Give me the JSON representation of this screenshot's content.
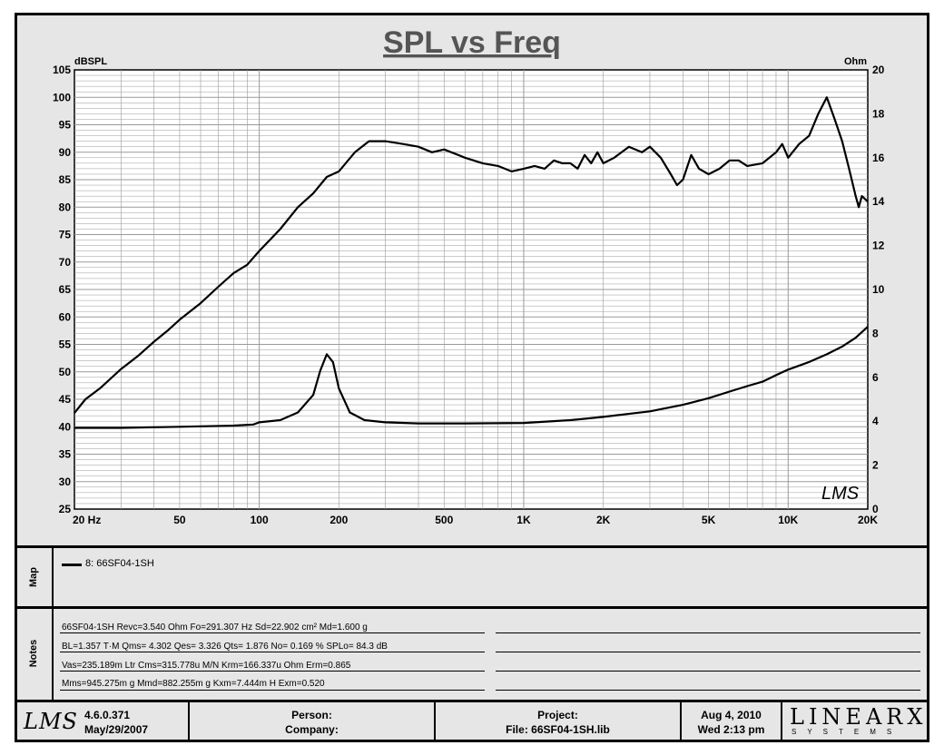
{
  "chart_data": {
    "type": "line",
    "title": "SPL vs Freq",
    "left_axis": {
      "label": "dBSPL",
      "range": [
        25,
        105
      ],
      "ticks": [
        "105",
        "100",
        "95",
        "90",
        "85",
        "80",
        "75",
        "70",
        "65",
        "60",
        "55",
        "50",
        "45",
        "40",
        "35",
        "30",
        "25"
      ]
    },
    "right_axis": {
      "label": "Ohm",
      "range": [
        0,
        20
      ],
      "ticks": [
        "20",
        "18",
        "16",
        "14",
        "12",
        "10",
        "8",
        "6",
        "4",
        "2",
        "0"
      ]
    },
    "x_axis": {
      "scale": "log",
      "range": [
        20,
        20000
      ],
      "tick_labels": [
        {
          "v": 20,
          "t": "20  Hz"
        },
        {
          "v": 50,
          "t": "50"
        },
        {
          "v": 100,
          "t": "100"
        },
        {
          "v": 200,
          "t": "200"
        },
        {
          "v": 500,
          "t": "500"
        },
        {
          "v": 1000,
          "t": "1K"
        },
        {
          "v": 2000,
          "t": "2K"
        },
        {
          "v": 5000,
          "t": "5K"
        },
        {
          "v": 10000,
          "t": "10K"
        },
        {
          "v": 20000,
          "t": "20K"
        }
      ]
    },
    "grid": true,
    "series": [
      {
        "axis": "left",
        "unit": "dBSPL",
        "points": [
          [
            20,
            42.5
          ],
          [
            22,
            45
          ],
          [
            25,
            47
          ],
          [
            30,
            50.5
          ],
          [
            35,
            53
          ],
          [
            40,
            55.5
          ],
          [
            45,
            57.5
          ],
          [
            50,
            59.5
          ],
          [
            60,
            62.5
          ],
          [
            70,
            65.5
          ],
          [
            80,
            68
          ],
          [
            90,
            69.5
          ],
          [
            100,
            72
          ],
          [
            120,
            76
          ],
          [
            140,
            80
          ],
          [
            160,
            82.5
          ],
          [
            180,
            85.5
          ],
          [
            200,
            86.5
          ],
          [
            230,
            90
          ],
          [
            260,
            92
          ],
          [
            300,
            92
          ],
          [
            350,
            91.5
          ],
          [
            400,
            91
          ],
          [
            450,
            90
          ],
          [
            500,
            90.5
          ],
          [
            600,
            89
          ],
          [
            700,
            88
          ],
          [
            800,
            87.5
          ],
          [
            900,
            86.5
          ],
          [
            1000,
            87
          ],
          [
            1100,
            87.5
          ],
          [
            1200,
            87
          ],
          [
            1300,
            88.5
          ],
          [
            1400,
            88
          ],
          [
            1500,
            88
          ],
          [
            1600,
            87
          ],
          [
            1700,
            89.5
          ],
          [
            1800,
            88
          ],
          [
            1900,
            90
          ],
          [
            2000,
            88
          ],
          [
            2200,
            89
          ],
          [
            2500,
            91
          ],
          [
            2800,
            90
          ],
          [
            3000,
            91
          ],
          [
            3300,
            89
          ],
          [
            3600,
            86
          ],
          [
            3800,
            84
          ],
          [
            4000,
            85
          ],
          [
            4300,
            89.5
          ],
          [
            4600,
            87
          ],
          [
            5000,
            86
          ],
          [
            5500,
            87
          ],
          [
            6000,
            88.5
          ],
          [
            6500,
            88.5
          ],
          [
            7000,
            87.5
          ],
          [
            8000,
            88
          ],
          [
            9000,
            90
          ],
          [
            9500,
            91.5
          ],
          [
            10000,
            89
          ],
          [
            11000,
            91.5
          ],
          [
            12000,
            93
          ],
          [
            13000,
            97
          ],
          [
            14000,
            100
          ],
          [
            15000,
            96
          ],
          [
            16000,
            92
          ],
          [
            17000,
            87
          ],
          [
            18000,
            82
          ],
          [
            18500,
            80
          ],
          [
            19000,
            82
          ],
          [
            20000,
            81
          ]
        ]
      },
      {
        "axis": "right",
        "unit": "Ohm",
        "points": [
          [
            20,
            3.7
          ],
          [
            30,
            3.7
          ],
          [
            50,
            3.75
          ],
          [
            80,
            3.8
          ],
          [
            95,
            3.85
          ],
          [
            100,
            3.95
          ],
          [
            120,
            4.05
          ],
          [
            140,
            4.4
          ],
          [
            160,
            5.2
          ],
          [
            170,
            6.3
          ],
          [
            180,
            7.05
          ],
          [
            190,
            6.7
          ],
          [
            200,
            5.5
          ],
          [
            220,
            4.4
          ],
          [
            250,
            4.05
          ],
          [
            300,
            3.95
          ],
          [
            400,
            3.9
          ],
          [
            600,
            3.9
          ],
          [
            1000,
            3.92
          ],
          [
            1500,
            4.05
          ],
          [
            2000,
            4.2
          ],
          [
            3000,
            4.45
          ],
          [
            4000,
            4.75
          ],
          [
            5000,
            5.05
          ],
          [
            6000,
            5.35
          ],
          [
            7000,
            5.6
          ],
          [
            8000,
            5.8
          ],
          [
            9000,
            6.1
          ],
          [
            10000,
            6.35
          ],
          [
            12000,
            6.7
          ],
          [
            14000,
            7.05
          ],
          [
            16000,
            7.4
          ],
          [
            18000,
            7.8
          ],
          [
            20000,
            8.3
          ]
        ]
      }
    ]
  },
  "map": {
    "label": "Map",
    "legend": "8: 66SF04-1SH"
  },
  "notes": {
    "label": "Notes",
    "lines": [
      "66SF04-1SH Revc=3.540 Ohm  Fo=291.307 Hz  Sd=22.902 cm² Md=1.600 g",
      "BL=1.357 T·M  Qms= 4.302  Qes= 3.326  Qts= 1.876  No= 0.169 %  SPLo= 84.3 dB",
      "Vas=235.189m Ltr  Cms=315.778u M/N  Krm=166.337u Ohm  Erm=0.865",
      "Mms=945.275m g  Mmd=882.255m g  Kxm=7.444m H  Exm=0.520"
    ]
  },
  "footer": {
    "logo": "LMS",
    "version": "4.6.0.371",
    "version_date": "May/29/2007",
    "person_label": "Person:",
    "company_label": "Company:",
    "project_label": "Project:",
    "file_label": "File: 66SF04-1SH.lib",
    "date": "Aug  4, 2010",
    "time": "Wed  2:13 pm",
    "brand": "LINEARX",
    "brand_sub": "SYSTEMS"
  },
  "watermark": "LMS",
  "colors": {
    "background": "#e6e6e6",
    "grid": "#9a9a9a",
    "curve": "#000000"
  }
}
